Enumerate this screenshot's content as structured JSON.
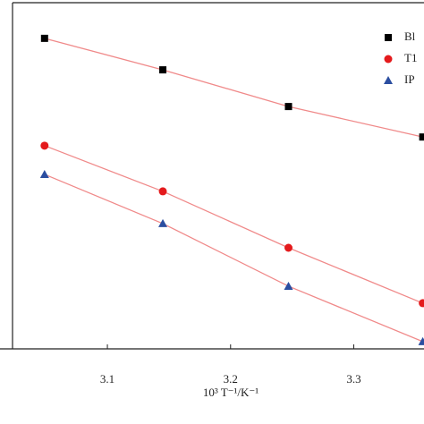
{
  "chart_data": {
    "type": "scatter",
    "x_label": "10³ T⁻¹/K⁻¹",
    "xlim": [
      3.023,
      3.357
    ],
    "xticks": [
      3.1,
      3.2,
      3.3
    ],
    "ylim": [
      0,
      10
    ],
    "legend": "top-right",
    "fit_color": "#f08a8a",
    "series": [
      {
        "name": "Bl",
        "color": "#000000",
        "marker": "square",
        "x": [
          3.049,
          3.145,
          3.247,
          3.356
        ],
        "values": [
          8.97,
          8.06,
          7.0,
          6.12
        ]
      },
      {
        "name": "T1",
        "color": "#e41a1c",
        "marker": "circle",
        "x": [
          3.049,
          3.145,
          3.247,
          3.356
        ],
        "values": [
          5.87,
          4.55,
          2.92,
          1.32
        ]
      },
      {
        "name": "IP",
        "color": "#2b4ea0",
        "marker": "triangle",
        "x": [
          3.049,
          3.145,
          3.247,
          3.356
        ],
        "values": [
          5.04,
          3.62,
          1.81,
          0.21
        ]
      }
    ]
  }
}
